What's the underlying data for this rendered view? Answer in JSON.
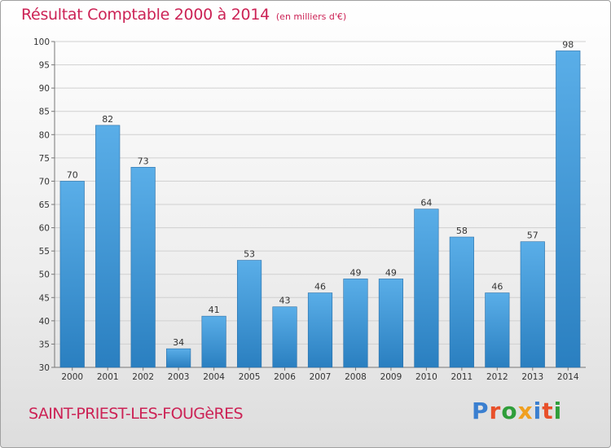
{
  "title": "Résultat Comptable 2000 à 2014",
  "unit_note": "(en milliers d'€)",
  "commune": "SAINT-PRIEST-LES-FOUGèRES",
  "brand": {
    "letters": [
      "P",
      "r",
      "o",
      "x",
      "i",
      "t",
      "i"
    ],
    "colors": [
      "#3a7fd0",
      "#e8502a",
      "#2f9e3a",
      "#f0a020",
      "#3a7fd0",
      "#e8502a",
      "#2f9e3a"
    ]
  },
  "colors": {
    "title": "#cc2255",
    "bar_top": "#5aaee8",
    "bar_bottom": "#2a7fc0"
  },
  "chart_data": {
    "type": "bar",
    "categories": [
      "2000",
      "2001",
      "2002",
      "2003",
      "2004",
      "2005",
      "2006",
      "2007",
      "2008",
      "2009",
      "2010",
      "2011",
      "2012",
      "2013",
      "2014"
    ],
    "values": [
      70,
      82,
      73,
      34,
      41,
      53,
      43,
      46,
      49,
      49,
      64,
      58,
      46,
      57,
      98
    ],
    "ylim": [
      30,
      100
    ],
    "yticks": [
      30,
      35,
      40,
      45,
      50,
      55,
      60,
      65,
      70,
      75,
      80,
      85,
      90,
      95,
      100
    ],
    "grid": true,
    "xlabel": "",
    "ylabel": ""
  }
}
